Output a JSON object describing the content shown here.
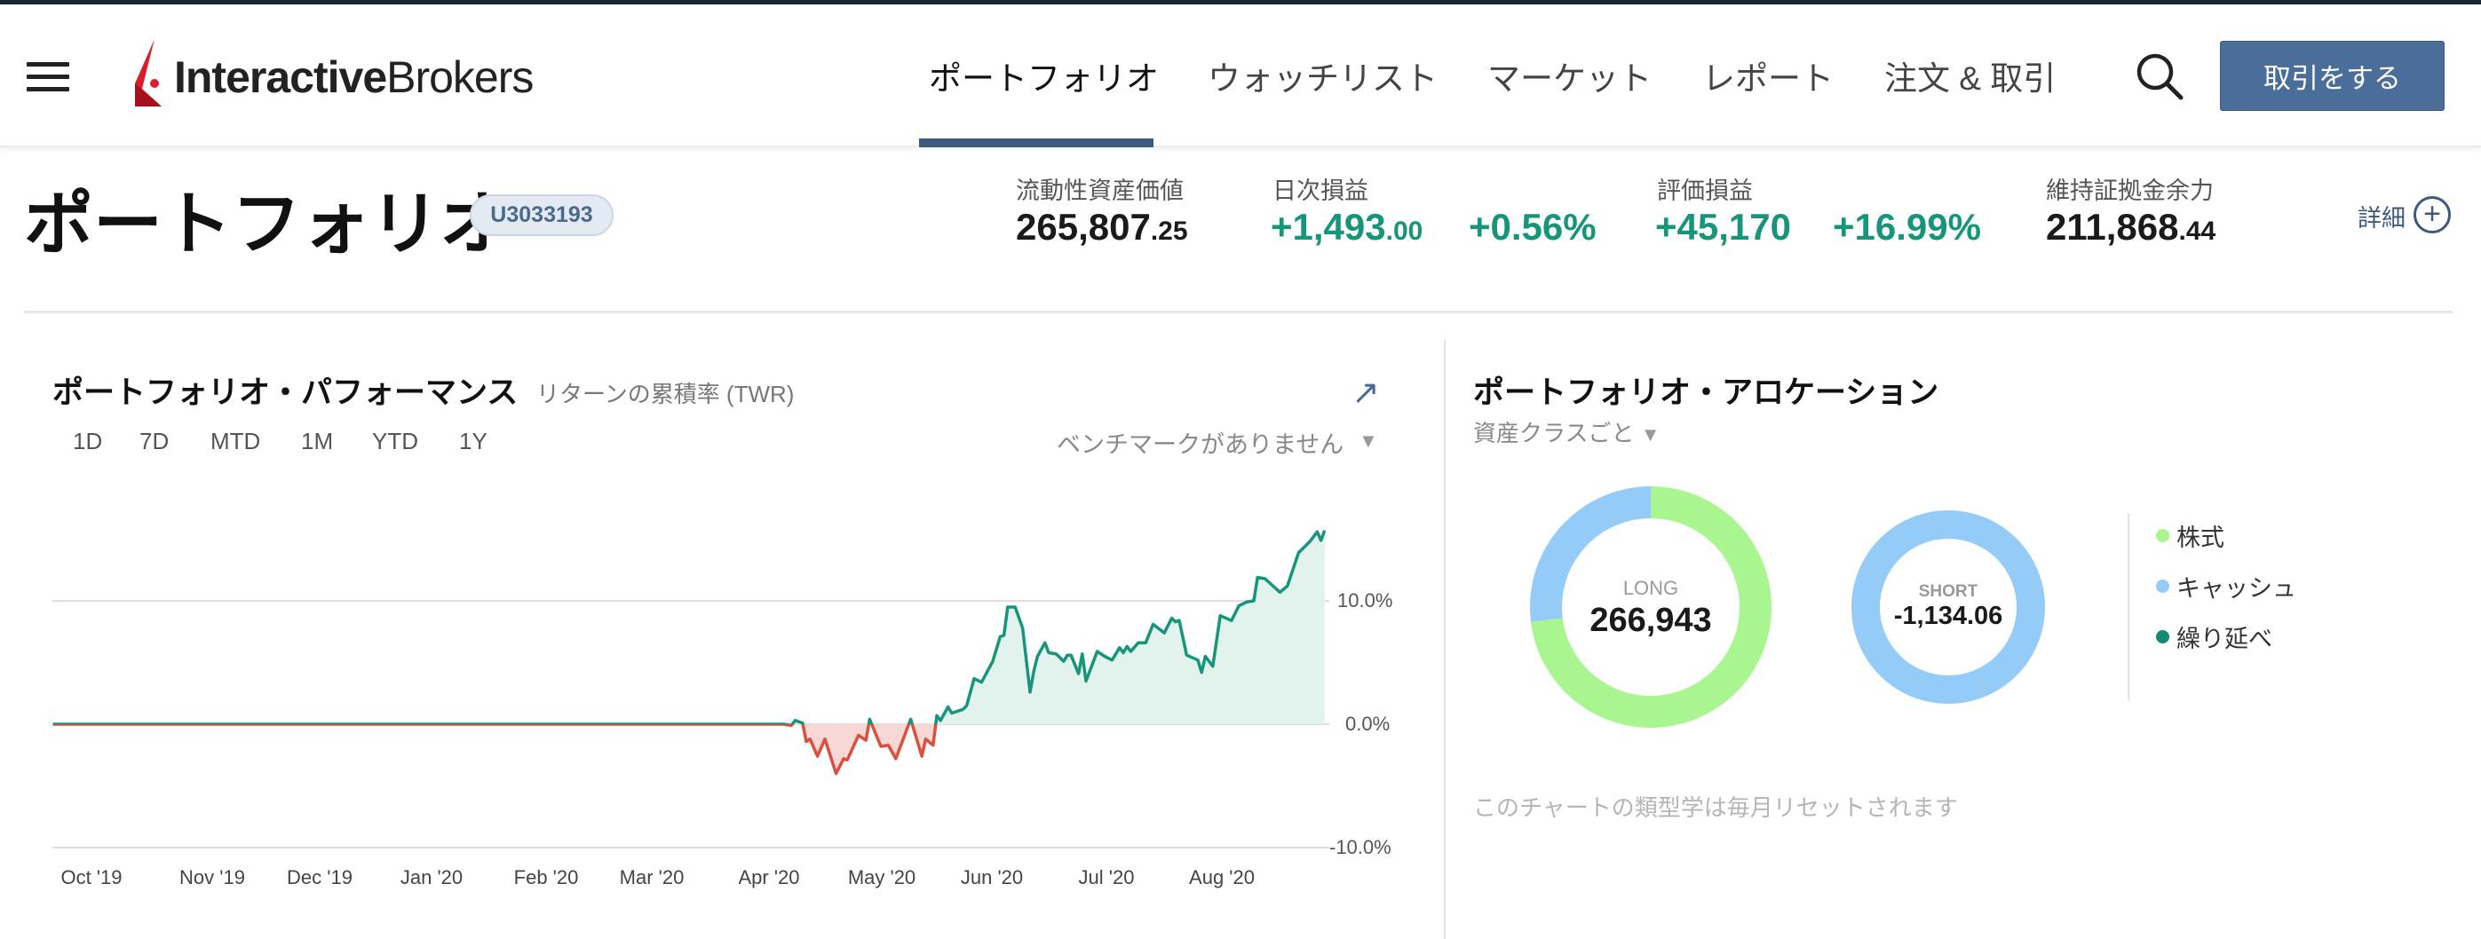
{
  "header": {
    "logo_text_bold": "Interactive",
    "logo_text_light": "Brokers",
    "nav": [
      "ポートフォリオ",
      "ウォッチリスト",
      "マーケット",
      "レポート",
      "注文 & 取引"
    ],
    "active_nav": "ポートフォリオ",
    "trade_button": "取引をする"
  },
  "page": {
    "title": "ポートフォリオ",
    "account_id": "U3033193"
  },
  "stats": {
    "nlv_label": "流動性資産価値",
    "nlv_main": "265,807",
    "nlv_dec": ".25",
    "daily_label": "日次損益",
    "daily_main": "+1,493",
    "daily_dec": ".00",
    "daily_pct": "+0.56%",
    "unreal_label": "評価損益",
    "unreal_value": "+45,170",
    "unreal_pct": "+16.99%",
    "excess_label": "維持証拠金余力",
    "excess_main": "211,868",
    "excess_dec": ".44",
    "detail_label": "詳細"
  },
  "performance": {
    "title": "ポートフォリオ・パフォーマンス",
    "subtitle": "リターンの累積率 (TWR)",
    "timeframes": [
      "1D",
      "7D",
      "MTD",
      "1M",
      "YTD",
      "1Y"
    ],
    "benchmark": "ベンチマークがありません"
  },
  "allocation": {
    "title": "ポートフォリオ・アロケーション",
    "group_by": "資産クラスごと",
    "long_label": "LONG",
    "long_value": "266,943",
    "short_label": "SHORT",
    "short_value": "-1,134.06",
    "long_split": {
      "stock": 0.73,
      "cash": 0.27
    },
    "short_split": {
      "cash": 1.0
    },
    "legend": [
      {
        "label": "株式",
        "color": "#a9f58f"
      },
      {
        "label": "キャッシュ",
        "color": "#94cbf7"
      },
      {
        "label": "繰り延べ",
        "color": "#138a72"
      }
    ],
    "note": "このチャートの類型学は毎月リセットされます"
  },
  "colors": {
    "accent": "#4b6d99",
    "positive": "#16957a",
    "negative": "#d9503f"
  },
  "chart_data": {
    "type": "area",
    "ylabel": "",
    "y_ticks": [
      "10.0%",
      "0.0%",
      "-10.0%"
    ],
    "x_ticks": [
      "Oct '19",
      "Nov '19",
      "Dec '19",
      "Jan '20",
      "Feb '20",
      "Mar '20",
      "Apr '20",
      "May '20",
      "Jun '20",
      "Jul '20",
      "Aug '20"
    ],
    "ylim": [
      -10,
      17
    ],
    "grid": true,
    "series": [
      {
        "points": [
          [
            "2019-09-22",
            0
          ],
          [
            "2020-04-05",
            0
          ],
          [
            "2020-04-07",
            -0.1
          ],
          [
            "2020-04-08",
            0.3
          ],
          [
            "2020-04-10",
            0.1
          ],
          [
            "2020-04-11",
            -1.4
          ],
          [
            "2020-04-12",
            -1.2
          ],
          [
            "2020-04-14",
            -2.6
          ],
          [
            "2020-04-16",
            -1.2
          ],
          [
            "2020-04-19",
            -4.0
          ],
          [
            "2020-04-21",
            -2.8
          ],
          [
            "2020-04-22",
            -2.9
          ],
          [
            "2020-04-25",
            -0.9
          ],
          [
            "2020-04-27",
            -1.3
          ],
          [
            "2020-04-28",
            0.4
          ],
          [
            "2020-05-01",
            -1.8
          ],
          [
            "2020-05-03",
            -1.7
          ],
          [
            "2020-05-05",
            -2.8
          ],
          [
            "2020-05-09",
            0.4
          ],
          [
            "2020-05-12",
            -2.6
          ],
          [
            "2020-05-13",
            -1.2
          ],
          [
            "2020-05-15",
            -1.7
          ],
          [
            "2020-05-16",
            0.7
          ],
          [
            "2020-05-17",
            0.3
          ],
          [
            "2020-05-19",
            1.4
          ],
          [
            "2020-05-20",
            0.9
          ],
          [
            "2020-05-23",
            1.2
          ],
          [
            "2020-05-24",
            1.5
          ],
          [
            "2020-05-26",
            3.7
          ],
          [
            "2020-05-28",
            3.4
          ],
          [
            "2020-05-31",
            5.1
          ],
          [
            "2020-06-02",
            7.1
          ],
          [
            "2020-06-03",
            7.2
          ],
          [
            "2020-06-04",
            9.5
          ],
          [
            "2020-06-06",
            9.5
          ],
          [
            "2020-06-08",
            7.8
          ],
          [
            "2020-06-10",
            2.6
          ],
          [
            "2020-06-11",
            4.3
          ],
          [
            "2020-06-12",
            5.5
          ],
          [
            "2020-06-14",
            6.6
          ],
          [
            "2020-06-15",
            5.8
          ],
          [
            "2020-06-17",
            5.7
          ],
          [
            "2020-06-19",
            5.1
          ],
          [
            "2020-06-20",
            5.6
          ],
          [
            "2020-06-21",
            5.6
          ],
          [
            "2020-06-23",
            4.1
          ],
          [
            "2020-06-24",
            5.7
          ],
          [
            "2020-06-25",
            3.5
          ],
          [
            "2020-06-28",
            5.9
          ],
          [
            "2020-06-30",
            5.5
          ],
          [
            "2020-07-02",
            5.2
          ],
          [
            "2020-07-04",
            6.2
          ],
          [
            "2020-07-05",
            5.8
          ],
          [
            "2020-07-06",
            6.3
          ],
          [
            "2020-07-07",
            5.9
          ],
          [
            "2020-07-09",
            6.6
          ],
          [
            "2020-07-11",
            6.6
          ],
          [
            "2020-07-13",
            8.1
          ],
          [
            "2020-07-16",
            7.4
          ],
          [
            "2020-07-18",
            8.6
          ],
          [
            "2020-07-19",
            8.3
          ],
          [
            "2020-07-20",
            8.4
          ],
          [
            "2020-07-22",
            5.6
          ],
          [
            "2020-07-25",
            5.2
          ],
          [
            "2020-07-26",
            4.2
          ],
          [
            "2020-07-27",
            5.5
          ],
          [
            "2020-07-29",
            4.7
          ],
          [
            "2020-07-31",
            8.8
          ],
          [
            "2020-08-03",
            8.4
          ],
          [
            "2020-08-05",
            9.6
          ],
          [
            "2020-08-07",
            9.9
          ],
          [
            "2020-08-09",
            10.0
          ],
          [
            "2020-08-10",
            11.9
          ],
          [
            "2020-08-12",
            11.8
          ],
          [
            "2020-08-16",
            10.7
          ],
          [
            "2020-08-18",
            11.2
          ],
          [
            "2020-08-21",
            13.9
          ],
          [
            "2020-08-24",
            14.8
          ],
          [
            "2020-08-26",
            15.6
          ],
          [
            "2020-08-27",
            14.9
          ],
          [
            "2020-08-28",
            15.7
          ]
        ]
      }
    ]
  }
}
